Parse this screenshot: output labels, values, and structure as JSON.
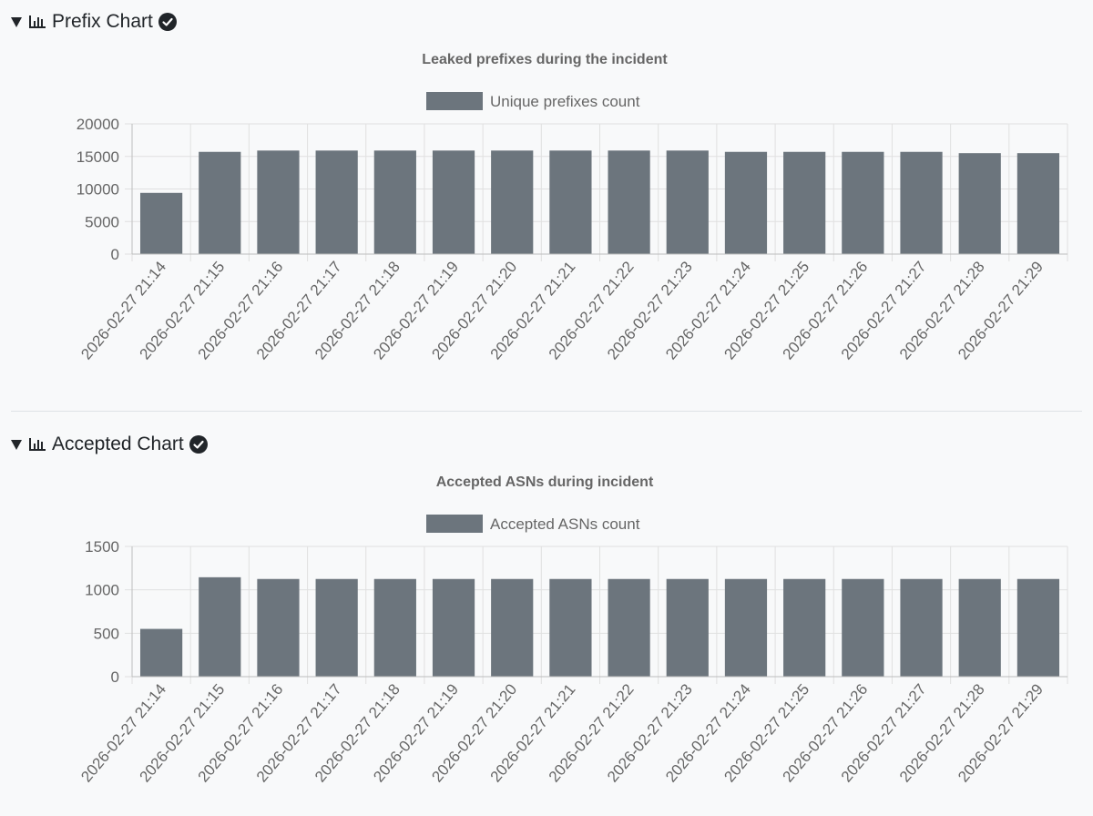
{
  "sections": [
    {
      "header": "Prefix Chart",
      "icon": "bar-chart-icon",
      "status_icon": "check-circle-icon"
    },
    {
      "header": "Accepted Chart",
      "icon": "bar-chart-icon",
      "status_icon": "check-circle-icon"
    }
  ],
  "colors": {
    "bar": "#6c757d",
    "grid": "#e0e0e0",
    "text": "#666666",
    "title": "#666666"
  },
  "chart_data": [
    {
      "type": "bar",
      "title": "Leaked prefixes during the incident",
      "legend": "Unique prefixes count",
      "categories": [
        "2026-02-27 21:14",
        "2026-02-27 21:15",
        "2026-02-27 21:16",
        "2026-02-27 21:17",
        "2026-02-27 21:18",
        "2026-02-27 21:19",
        "2026-02-27 21:20",
        "2026-02-27 21:21",
        "2026-02-27 21:22",
        "2026-02-27 21:23",
        "2026-02-27 21:24",
        "2026-02-27 21:25",
        "2026-02-27 21:26",
        "2026-02-27 21:27",
        "2026-02-27 21:28",
        "2026-02-27 21:29"
      ],
      "values": [
        9400,
        15700,
        15900,
        15900,
        15900,
        15900,
        15900,
        15900,
        15900,
        15900,
        15700,
        15700,
        15700,
        15700,
        15500,
        15500
      ],
      "ylim": [
        0,
        20000
      ],
      "yticks": [
        "0",
        "5000",
        "10000",
        "15000",
        "20000"
      ],
      "xlabel": "",
      "ylabel": ""
    },
    {
      "type": "bar",
      "title": "Accepted ASNs during incident",
      "legend": "Accepted ASNs count",
      "categories": [
        "2026-02-27 21:14",
        "2026-02-27 21:15",
        "2026-02-27 21:16",
        "2026-02-27 21:17",
        "2026-02-27 21:18",
        "2026-02-27 21:19",
        "2026-02-27 21:20",
        "2026-02-27 21:21",
        "2026-02-27 21:22",
        "2026-02-27 21:23",
        "2026-02-27 21:24",
        "2026-02-27 21:25",
        "2026-02-27 21:26",
        "2026-02-27 21:27",
        "2026-02-27 21:28",
        "2026-02-27 21:29"
      ],
      "values": [
        550,
        1145,
        1125,
        1125,
        1125,
        1125,
        1125,
        1125,
        1125,
        1125,
        1125,
        1125,
        1125,
        1125,
        1125,
        1125
      ],
      "ylim": [
        0,
        1500
      ],
      "yticks": [
        "0",
        "500",
        "1000",
        "1500"
      ],
      "xlabel": "",
      "ylabel": ""
    }
  ]
}
